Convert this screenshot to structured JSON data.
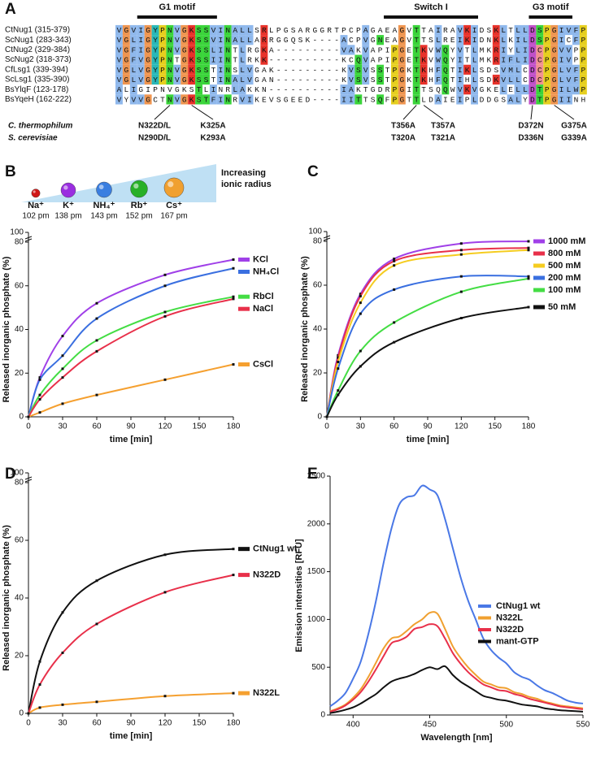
{
  "alignment": {
    "panel": "A",
    "motifs": [
      "G1 motif",
      "Switch I",
      "G3 motif"
    ],
    "rows": [
      {
        "name": "CtNug1 (315-379)",
        "sequence": "VGVIGYPNVGKSSVINALLSRLPGSARGGRTPCPAGAEAGVTTAIRAVKIDSKLTLLDSPGIVFP"
      },
      {
        "name": "ScNug1 (283-343)",
        "sequence": "VGLIGYPNVGKSSVINALLARRGGQSK----ACPVGNEAGVTTSLREIKIDNKLKILDSPGICFP"
      },
      {
        "name": "CtNug2 (329-384)",
        "sequence": "VGFIGYPNVGKSSLINTLRGKA---------VAKVAPIPGETKVWQYVTLMKRIYLIDCPGVVPP"
      },
      {
        "name": "ScNug2 (318-373)",
        "sequence": "VGFVGYPNTGKSSIINTLRKK----------KCQVAPIPGETKVWQYITLMKRIFLIDCPGIVPP"
      },
      {
        "name": "CfLsg1 (339-394)",
        "sequence": "VGLVGYPNVGKSSTINSLVGAK---------KVSVSSTPGKTKHFQTIKLSDSVMLCDCPGLVFP"
      },
      {
        "name": "ScLsg1 (335-390)",
        "sequence": "VGLVGYPNVGKSSTINALVGAN---------KVSVSSTPGKTKHFQTIHLSDKVLLCDCPGLVFP"
      },
      {
        "name": "BsYlqF (123-178)",
        "sequence": "ALIGIPNVGKSTLINRLAKKN----------IAKTGDRPGITTSQQWVKVGKELELLDTPGILWP"
      },
      {
        "name": "BsYqeH (162-222)",
        "sequence": "VYVVGCTNVGKSTFINRVIKEVSGEED----IITTSQFPGTTLDAIEIPLDDGSALYDTPGIINH"
      }
    ],
    "mutations": {
      "species": [
        "C. thermophilum",
        "S. cerevisiae"
      ],
      "sites": [
        [
          "N322D/L",
          "N290D/L"
        ],
        [
          "K325A",
          "K293A"
        ],
        [
          "T356A",
          "T320A"
        ],
        [
          "T357A",
          "T321A"
        ],
        [
          "D372N",
          "D336N"
        ],
        [
          "G375A",
          "G339A"
        ]
      ]
    }
  },
  "chart_data": [
    {
      "panel": "B",
      "type": "line",
      "ions": {
        "names": [
          "Na⁺",
          "K⁺",
          "NH₄⁺",
          "Rb⁺",
          "Cs⁺"
        ],
        "radii": [
          102,
          138,
          143,
          152,
          167
        ],
        "radius_labels": [
          "102 pm",
          "138 pm",
          "143 pm",
          "152 pm",
          "167 pm"
        ],
        "colors": [
          "#d01818",
          "#9a2ee0",
          "#3a7ee0",
          "#28b028",
          "#f0a030"
        ],
        "caption": [
          "Increasing",
          "ionic radius"
        ]
      },
      "xlabel": "time [min]",
      "ylabel": "Released inorganic phosphate (%)",
      "x": [
        0,
        10,
        30,
        60,
        120,
        180
      ],
      "xlim": [
        0,
        180
      ],
      "xticks": [
        0,
        30,
        60,
        90,
        120,
        150,
        180
      ],
      "ylim": [
        0,
        80
      ],
      "yticks": [
        0,
        20,
        40,
        60,
        80
      ],
      "ybreak_ticks": [
        100
      ],
      "series": [
        {
          "name": "KCl",
          "color": "#a040e8",
          "values": [
            0,
            18,
            37,
            52,
            65,
            72
          ]
        },
        {
          "name": "NH₄Cl",
          "color": "#3a6fe0",
          "values": [
            0,
            17,
            28,
            45,
            60,
            68
          ]
        },
        {
          "name": "RbCl",
          "color": "#44dd44",
          "values": [
            0,
            10,
            22,
            35,
            48,
            55
          ]
        },
        {
          "name": "NaCl",
          "color": "#e8304a",
          "values": [
            0,
            8,
            18,
            30,
            46,
            54
          ]
        },
        {
          "name": "CsCl",
          "color": "#f5a030",
          "values": [
            0,
            2,
            6,
            10,
            17,
            24
          ]
        }
      ]
    },
    {
      "panel": "C",
      "type": "line",
      "xlabel": "time [min]",
      "ylabel": "Released inorganic phosphate (%)",
      "x": [
        0,
        10,
        30,
        60,
        120,
        180
      ],
      "xlim": [
        0,
        180
      ],
      "xticks": [
        0,
        30,
        60,
        90,
        120,
        150,
        180
      ],
      "ylim": [
        0,
        80
      ],
      "yticks": [
        0,
        20,
        40,
        60,
        80
      ],
      "ybreak_ticks": [
        100
      ],
      "series": [
        {
          "name": "1000 mM",
          "color": "#a040e8",
          "values": [
            0,
            28,
            56,
            72,
            79,
            80
          ]
        },
        {
          "name": "800 mM",
          "color": "#e8304a",
          "values": [
            0,
            27,
            55,
            71,
            76,
            77
          ]
        },
        {
          "name": "500 mM",
          "color": "#f5cc20",
          "values": [
            0,
            25,
            52,
            69,
            74,
            76
          ]
        },
        {
          "name": "200 mM",
          "color": "#3a6fe0",
          "values": [
            0,
            22,
            47,
            58,
            64,
            64
          ]
        },
        {
          "name": "100 mM",
          "color": "#44dd44",
          "values": [
            0,
            12,
            30,
            43,
            57,
            63
          ]
        },
        {
          "name": "50 mM",
          "color": "#111111",
          "values": [
            0,
            10,
            23,
            34,
            45,
            50
          ]
        }
      ]
    },
    {
      "panel": "D",
      "type": "line",
      "xlabel": "time [min]",
      "ylabel": "Released inorganic phosphate (%)",
      "x": [
        0,
        10,
        30,
        60,
        120,
        180
      ],
      "xlim": [
        0,
        180
      ],
      "xticks": [
        0,
        30,
        60,
        90,
        120,
        150,
        180
      ],
      "ylim": [
        0,
        80
      ],
      "yticks": [
        0,
        20,
        40,
        60,
        80
      ],
      "ybreak_ticks": [
        100
      ],
      "series": [
        {
          "name": "CtNug1 wt",
          "color": "#111111",
          "values": [
            0,
            18,
            35,
            46,
            55,
            57
          ]
        },
        {
          "name": "N322D",
          "color": "#e8304a",
          "values": [
            0,
            10,
            21,
            31,
            42,
            48
          ]
        },
        {
          "name": "N322L",
          "color": "#f5a030",
          "values": [
            0,
            2,
            3,
            4,
            6,
            7
          ]
        }
      ]
    },
    {
      "panel": "E",
      "type": "spectrum",
      "xlabel": "Wavelength [nm]",
      "ylabel": "Emission intensities [RFU]",
      "x": [
        385,
        390,
        395,
        400,
        405,
        410,
        415,
        420,
        425,
        430,
        435,
        440,
        445,
        450,
        455,
        460,
        465,
        470,
        475,
        480,
        485,
        490,
        495,
        500,
        505,
        510,
        515,
        520,
        525,
        530,
        535,
        540,
        545,
        550
      ],
      "xlim": [
        385,
        550
      ],
      "xticks": [
        400,
        450,
        500,
        550
      ],
      "ylim": [
        0,
        2500
      ],
      "yticks": [
        0,
        500,
        1000,
        1500,
        2000,
        2500
      ],
      "series": [
        {
          "name": "CtNug1 wt",
          "color": "#4a78e6",
          "values": [
            90,
            150,
            230,
            380,
            560,
            850,
            1200,
            1600,
            1950,
            2200,
            2280,
            2300,
            2400,
            2360,
            2300,
            2050,
            1750,
            1450,
            1200,
            1000,
            800,
            680,
            600,
            540,
            450,
            400,
            370,
            310,
            260,
            230,
            190,
            150,
            130,
            120
          ]
        },
        {
          "name": "N322L",
          "color": "#f0a030",
          "values": [
            40,
            70,
            110,
            180,
            270,
            400,
            550,
            700,
            800,
            820,
            880,
            950,
            1000,
            1070,
            1060,
            900,
            720,
            600,
            500,
            420,
            350,
            320,
            290,
            280,
            240,
            220,
            190,
            170,
            140,
            120,
            100,
            90,
            80,
            70
          ]
        },
        {
          "name": "N322D",
          "color": "#e8304a",
          "values": [
            35,
            60,
            100,
            160,
            240,
            350,
            480,
            620,
            750,
            780,
            820,
            900,
            920,
            950,
            930,
            800,
            650,
            540,
            450,
            380,
            320,
            290,
            260,
            250,
            220,
            200,
            170,
            150,
            130,
            110,
            90,
            80,
            70,
            60
          ]
        },
        {
          "name": "mant-GTP",
          "color": "#111111",
          "values": [
            20,
            35,
            55,
            80,
            120,
            170,
            220,
            290,
            350,
            380,
            400,
            430,
            470,
            500,
            480,
            510,
            420,
            350,
            300,
            250,
            200,
            180,
            160,
            150,
            130,
            110,
            100,
            90,
            70,
            60,
            50,
            45,
            40,
            35
          ]
        }
      ]
    }
  ]
}
